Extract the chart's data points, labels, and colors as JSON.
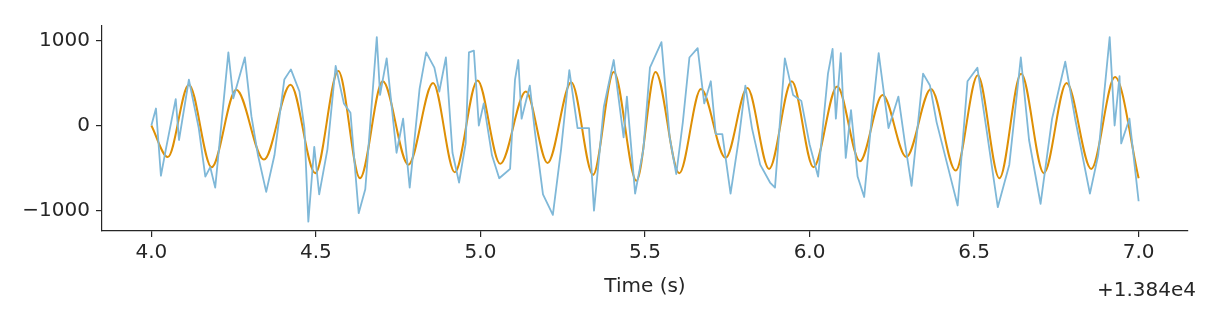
{
  "chart_data": {
    "type": "line",
    "xlabel": "Time (s)",
    "annotations": [
      "+1.384e4"
    ],
    "xlim": [
      3.85,
      7.15
    ],
    "xticks": [
      {
        "value": 4,
        "label": "4.0"
      },
      4.5,
      {
        "value": 5,
        "label": "5.0"
      },
      5.5,
      {
        "value": 6,
        "label": "6.0"
      },
      6.5,
      {
        "value": 7,
        "label": "7.0"
      }
    ],
    "ylim": [
      -1240,
      1170
    ],
    "yticks": [
      {
        "value": -1000,
        "label": "−1000"
      },
      0,
      1000
    ],
    "grid": false,
    "legend": false,
    "marker": "none",
    "line_style": "solid",
    "series": [
      {
        "color": "#7fb8d8",
        "x": [
          4.0,
          4.014,
          4.029,
          4.044,
          4.074,
          4.084,
          4.114,
          4.144,
          4.164,
          4.179,
          4.194,
          4.234,
          4.249,
          4.284,
          4.304,
          4.324,
          4.349,
          4.374,
          4.404,
          4.424,
          4.45,
          4.465,
          4.477,
          4.495,
          4.51,
          4.535,
          4.56,
          4.585,
          4.605,
          4.63,
          4.65,
          4.685,
          4.695,
          4.715,
          4.745,
          4.765,
          4.785,
          4.815,
          4.835,
          4.86,
          4.875,
          4.895,
          4.915,
          4.935,
          4.955,
          4.965,
          4.98,
          4.995,
          5.01,
          5.035,
          5.057,
          5.09,
          5.105,
          5.115,
          5.125,
          5.15,
          5.165,
          5.19,
          5.22,
          5.245,
          5.27,
          5.295,
          5.33,
          5.345,
          5.375,
          5.405,
          5.435,
          5.445,
          5.47,
          5.495,
          5.515,
          5.55,
          5.575,
          5.595,
          5.615,
          5.635,
          5.66,
          5.68,
          5.7,
          5.715,
          5.735,
          5.76,
          5.785,
          5.805,
          5.825,
          5.85,
          5.88,
          5.895,
          5.91,
          5.925,
          5.95,
          5.975,
          6.0,
          6.026,
          6.056,
          6.07,
          6.08,
          6.095,
          6.11,
          6.126,
          6.146,
          6.166,
          6.186,
          6.21,
          6.24,
          6.27,
          6.29,
          6.31,
          6.345,
          6.366,
          6.386,
          6.42,
          6.45,
          6.48,
          6.51,
          6.536,
          6.572,
          6.607,
          6.642,
          6.667,
          6.702,
          6.737,
          6.777,
          6.807,
          6.852,
          6.877,
          6.912,
          6.927,
          6.942,
          6.947,
          6.972,
          7.0
        ],
        "values": [
          0,
          200,
          -590,
          -280,
          310,
          -170,
          540,
          -30,
          -600,
          -490,
          -730,
          860,
          320,
          800,
          110,
          -350,
          -780,
          -350,
          540,
          660,
          400,
          -30,
          -1130,
          -250,
          -810,
          -280,
          700,
          260,
          150,
          -1030,
          -750,
          1040,
          360,
          790,
          -320,
          80,
          -730,
          430,
          860,
          680,
          400,
          800,
          -320,
          -670,
          -210,
          860,
          880,
          0,
          260,
          -350,
          -620,
          -510,
          540,
          770,
          80,
          470,
          -60,
          -810,
          -1050,
          -280,
          650,
          -30,
          -30,
          -1000,
          220,
          770,
          -140,
          340,
          -800,
          -280,
          680,
          980,
          -140,
          -570,
          40,
          800,
          910,
          260,
          520,
          -100,
          -100,
          -800,
          -160,
          470,
          -30,
          -460,
          -670,
          -730,
          40,
          790,
          360,
          290,
          -220,
          -600,
          610,
          900,
          80,
          850,
          -380,
          180,
          -600,
          -840,
          -30,
          850,
          -30,
          340,
          -210,
          -710,
          610,
          470,
          40,
          -480,
          -940,
          520,
          680,
          0,
          -960,
          -460,
          800,
          -170,
          -920,
          80,
          750,
          80,
          -800,
          -350,
          1040,
          0,
          580,
          -210,
          80,
          -890
        ]
      },
      {
        "color": "#de8f05",
        "x": [
          4.0,
          4.05,
          4.114,
          4.183,
          4.258,
          4.342,
          4.423,
          4.498,
          4.568,
          4.634,
          4.703,
          4.781,
          4.856,
          4.922,
          4.991,
          5.06,
          5.138,
          5.204,
          5.276,
          5.342,
          5.405,
          5.474,
          5.532,
          5.604,
          5.67,
          5.745,
          5.811,
          5.877,
          5.946,
          6.012,
          6.084,
          6.153,
          6.222,
          6.294,
          6.369,
          6.444,
          6.511,
          6.577,
          6.643,
          6.712,
          6.781,
          6.856,
          6.928,
          7.0
        ],
        "values": [
          0,
          -370,
          480,
          -490,
          420,
          -400,
          480,
          -560,
          640,
          -620,
          520,
          -460,
          500,
          -550,
          530,
          -450,
          400,
          -440,
          510,
          -580,
          630,
          -650,
          630,
          -560,
          430,
          -380,
          440,
          -510,
          520,
          -490,
          460,
          -420,
          360,
          -370,
          430,
          -530,
          590,
          -620,
          610,
          -560,
          500,
          -510,
          570,
          -620
        ]
      }
    ]
  }
}
